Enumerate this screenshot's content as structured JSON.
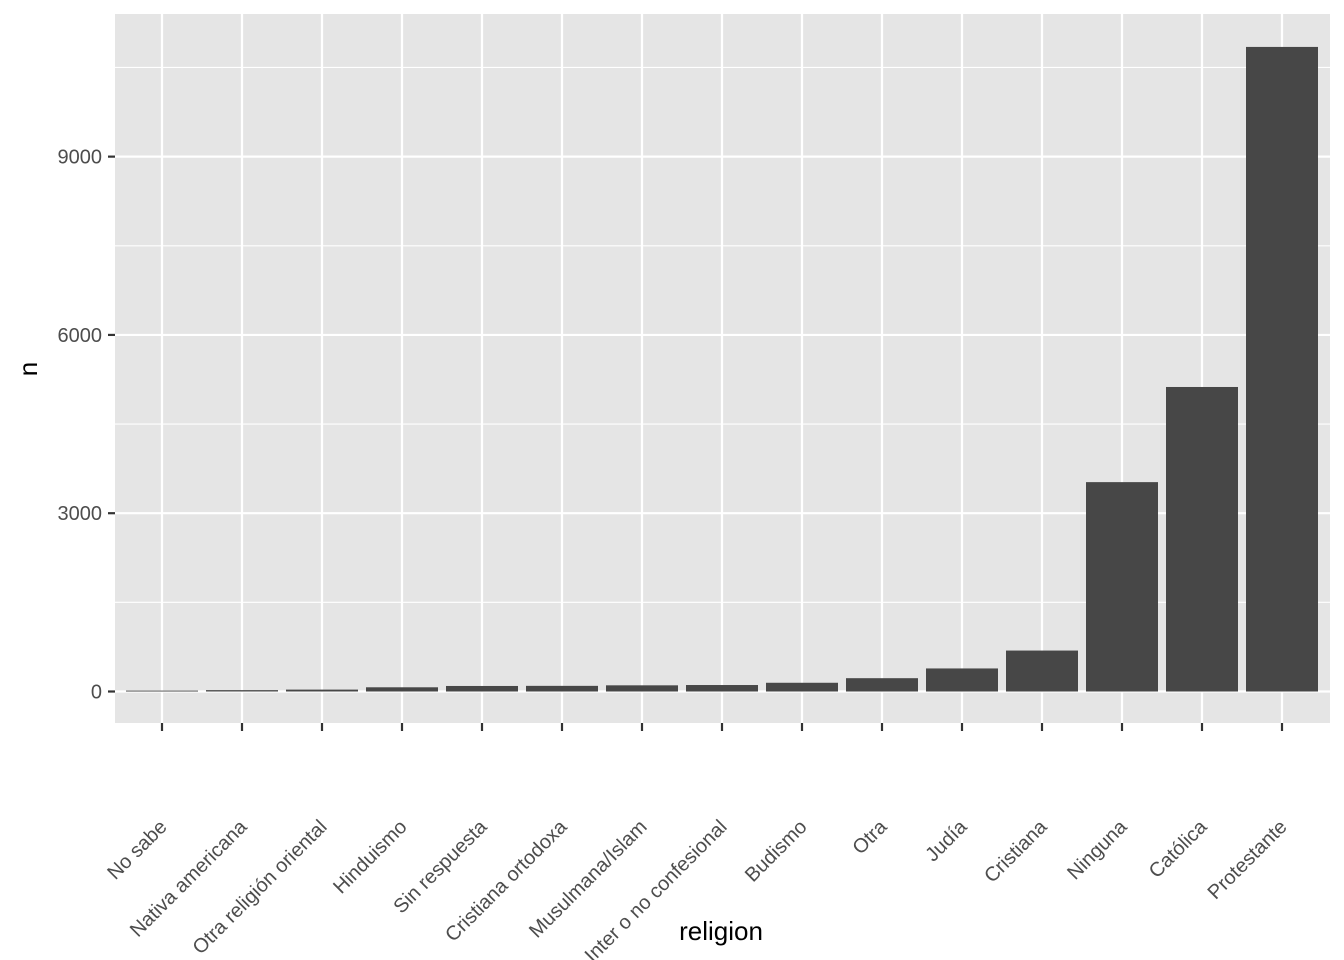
{
  "chart_data": {
    "type": "bar",
    "title": "",
    "xlabel": "religion",
    "ylabel": "n",
    "categories": [
      "No sabe",
      "Nativa americana",
      "Otra religión oriental",
      "Hinduismo",
      "Sin respuesta",
      "Cristiana ortodoxa",
      "Musulmana/Islam",
      "Inter o no confesional",
      "Budismo",
      "Otra",
      "Judía",
      "Cristiana",
      "Ninguna",
      "Católica",
      "Protestante"
    ],
    "values": [
      15,
      23,
      32,
      71,
      93,
      95,
      104,
      109,
      147,
      224,
      388,
      689,
      3523,
      5124,
      10846
    ],
    "ylim": [
      -530,
      11400
    ],
    "y_ticks": [
      0,
      3000,
      6000,
      9000
    ],
    "y_tick_labels": [
      "0",
      "3000",
      "6000",
      "9000"
    ],
    "grid": true,
    "legend": "none",
    "colors": {
      "bar": "#474747",
      "panel": "#e5e5e5",
      "grid": "#ffffff",
      "tick": "#333333",
      "tick_label": "#4d4d4d"
    }
  }
}
